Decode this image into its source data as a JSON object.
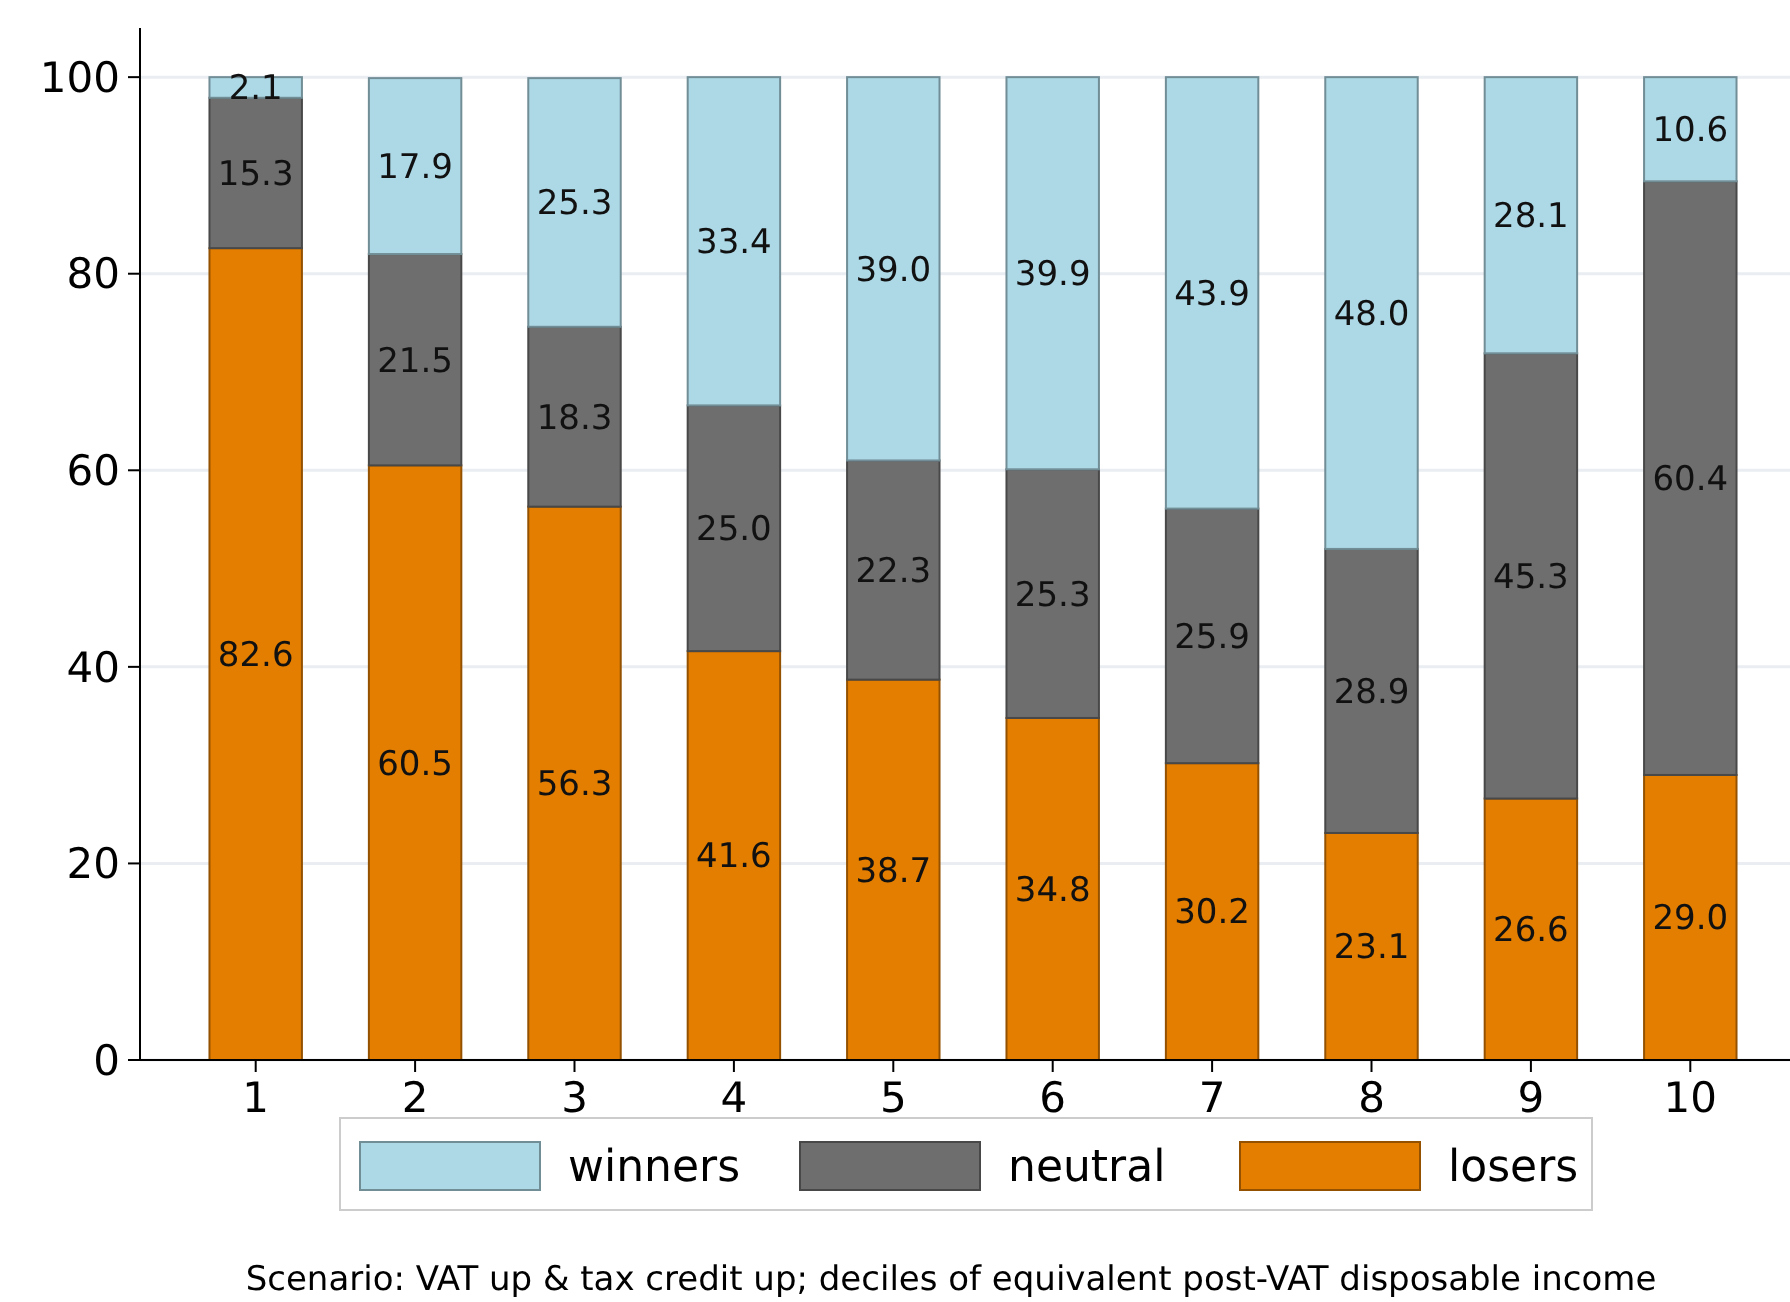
{
  "chart_data": {
    "type": "bar",
    "stacked": true,
    "categories": [
      "1",
      "2",
      "3",
      "4",
      "5",
      "6",
      "7",
      "8",
      "9",
      "10"
    ],
    "series": [
      {
        "name": "losers",
        "color": "#e37e00",
        "values": [
          82.6,
          60.5,
          56.3,
          41.6,
          38.7,
          34.8,
          30.2,
          23.1,
          26.6,
          29.0
        ],
        "value_labels": [
          "82.6",
          "60.5",
          "56.3",
          "41.6",
          "38.7",
          "34.8",
          "30.2",
          "23.1",
          "26.6",
          "29.0"
        ]
      },
      {
        "name": "neutral",
        "color": "#6e6e6e",
        "values": [
          15.3,
          21.5,
          18.3,
          25.0,
          22.3,
          25.3,
          25.9,
          28.9,
          45.3,
          60.4
        ],
        "value_labels": [
          "15.3",
          "21.5",
          "18.3",
          "25.0",
          "22.3",
          "25.3",
          "25.9",
          "28.9",
          "45.3",
          "60.4"
        ]
      },
      {
        "name": "winners",
        "color": "#add8e6",
        "values": [
          2.1,
          17.9,
          25.3,
          33.4,
          39.0,
          39.9,
          43.9,
          48.0,
          28.1,
          10.6
        ],
        "value_labels": [
          "2.1",
          "17.9",
          "25.3",
          "33.4",
          "39.0",
          "39.9",
          "43.9",
          "48.0",
          "28.1",
          "10.6"
        ]
      }
    ],
    "ylim": [
      0,
      105
    ],
    "yticks": [
      0,
      20,
      40,
      60,
      80,
      100
    ],
    "grid": "y",
    "legend": "bottom",
    "annotations": [
      "Scenario: VAT up & tax credit up; deciles of equivalent post-VAT disposable income"
    ]
  }
}
